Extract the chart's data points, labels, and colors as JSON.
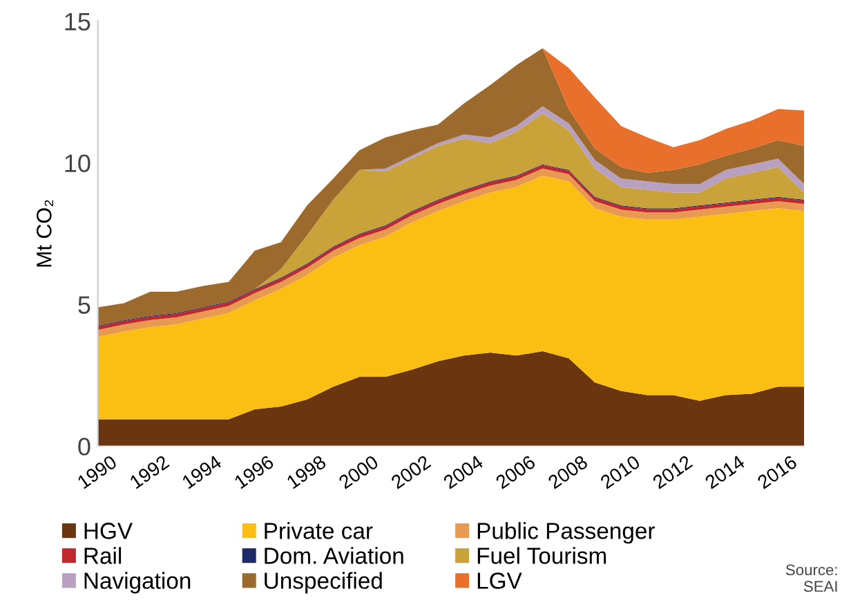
{
  "chart_data": {
    "type": "area",
    "stacked": true,
    "ylabel": "Mt CO₂",
    "x": [
      1990,
      1991,
      1992,
      1993,
      1994,
      1995,
      1996,
      1997,
      1998,
      1999,
      2000,
      2001,
      2002,
      2003,
      2004,
      2005,
      2006,
      2007,
      2008,
      2009,
      2010,
      2011,
      2012,
      2013,
      2014,
      2015,
      2016,
      2017
    ],
    "xlim": [
      1990,
      2017
    ],
    "xticks": [
      1990,
      1992,
      1994,
      1996,
      1998,
      2000,
      2002,
      2004,
      2006,
      2008,
      2010,
      2012,
      2014,
      2016
    ],
    "ylim": [
      0,
      15
    ],
    "yticks": [
      0,
      5,
      10,
      15
    ],
    "grid": false,
    "legend": "bottom",
    "series": [
      {
        "name": "HGV",
        "color": "#6b3510",
        "values": [
          0.95,
          0.95,
          0.95,
          0.95,
          0.95,
          0.95,
          1.3,
          1.4,
          1.65,
          2.1,
          2.45,
          2.45,
          2.7,
          3.0,
          3.2,
          3.3,
          3.2,
          3.35,
          3.1,
          2.25,
          1.95,
          1.8,
          1.8,
          1.6,
          1.8,
          1.85,
          2.1,
          2.1
        ]
      },
      {
        "name": "Private car",
        "color": "#fbbf14",
        "values": [
          2.9,
          3.1,
          3.25,
          3.35,
          3.55,
          3.75,
          3.85,
          4.15,
          4.4,
          4.55,
          4.65,
          4.95,
          5.2,
          5.3,
          5.45,
          5.65,
          5.95,
          6.2,
          6.25,
          6.15,
          6.15,
          6.2,
          6.2,
          6.5,
          6.4,
          6.45,
          6.3,
          6.2
        ]
      },
      {
        "name": "Public Passenger",
        "color": "#e89a50",
        "values": [
          0.25,
          0.25,
          0.25,
          0.25,
          0.25,
          0.25,
          0.25,
          0.25,
          0.25,
          0.25,
          0.25,
          0.25,
          0.25,
          0.25,
          0.25,
          0.25,
          0.25,
          0.25,
          0.25,
          0.25,
          0.25,
          0.25,
          0.25,
          0.25,
          0.25,
          0.25,
          0.25,
          0.25
        ]
      },
      {
        "name": "Rail",
        "color": "#c0282d",
        "values": [
          0.12,
          0.12,
          0.12,
          0.12,
          0.12,
          0.12,
          0.12,
          0.12,
          0.12,
          0.12,
          0.12,
          0.12,
          0.12,
          0.12,
          0.12,
          0.12,
          0.12,
          0.12,
          0.12,
          0.12,
          0.12,
          0.12,
          0.12,
          0.12,
          0.12,
          0.12,
          0.12,
          0.12
        ]
      },
      {
        "name": "Dom. Aviation",
        "color": "#1f2a6b",
        "values": [
          0.03,
          0.03,
          0.03,
          0.03,
          0.03,
          0.03,
          0.03,
          0.03,
          0.03,
          0.03,
          0.03,
          0.03,
          0.03,
          0.03,
          0.03,
          0.03,
          0.03,
          0.03,
          0.03,
          0.03,
          0.03,
          0.03,
          0.03,
          0.03,
          0.03,
          0.03,
          0.03,
          0.03
        ]
      },
      {
        "name": "Fuel Tourism",
        "color": "#c9a23a",
        "values": [
          0,
          0,
          0,
          0,
          0,
          0,
          0,
          0.3,
          1.0,
          1.65,
          2.25,
          1.9,
          1.85,
          1.9,
          1.8,
          1.35,
          1.55,
          1.8,
          1.4,
          1.0,
          0.65,
          0.65,
          0.55,
          0.45,
          0.85,
          0.95,
          1.05,
          0.25
        ]
      },
      {
        "name": "Navigation",
        "color": "#b8a0c0",
        "values": [
          0,
          0,
          0,
          0,
          0,
          0,
          0,
          0,
          0,
          0,
          0,
          0.1,
          0.1,
          0.1,
          0.15,
          0.2,
          0.2,
          0.25,
          0.25,
          0.3,
          0.3,
          0.3,
          0.3,
          0.3,
          0.3,
          0.3,
          0.3,
          0.3
        ]
      },
      {
        "name": "Unspecified",
        "color": "#9c6a2c",
        "values": [
          0.65,
          0.6,
          0.85,
          0.75,
          0.75,
          0.7,
          1.35,
          0.95,
          1.05,
          0.75,
          0.7,
          1.1,
          0.9,
          0.65,
          1.1,
          1.85,
          2.15,
          2.05,
          0.5,
          0.4,
          0.4,
          0.3,
          0.5,
          0.7,
          0.5,
          0.55,
          0.65,
          1.35
        ]
      },
      {
        "name": "LGV",
        "color": "#e8702a",
        "values": [
          0,
          0,
          0,
          0,
          0,
          0,
          0,
          0,
          0,
          0,
          0,
          0,
          0,
          0,
          0,
          0,
          0,
          0,
          1.45,
          1.8,
          1.45,
          1.25,
          0.8,
          0.85,
          0.95,
          1.0,
          1.1,
          1.25
        ]
      }
    ],
    "annotations": [
      "Source:\nSEAI"
    ]
  }
}
